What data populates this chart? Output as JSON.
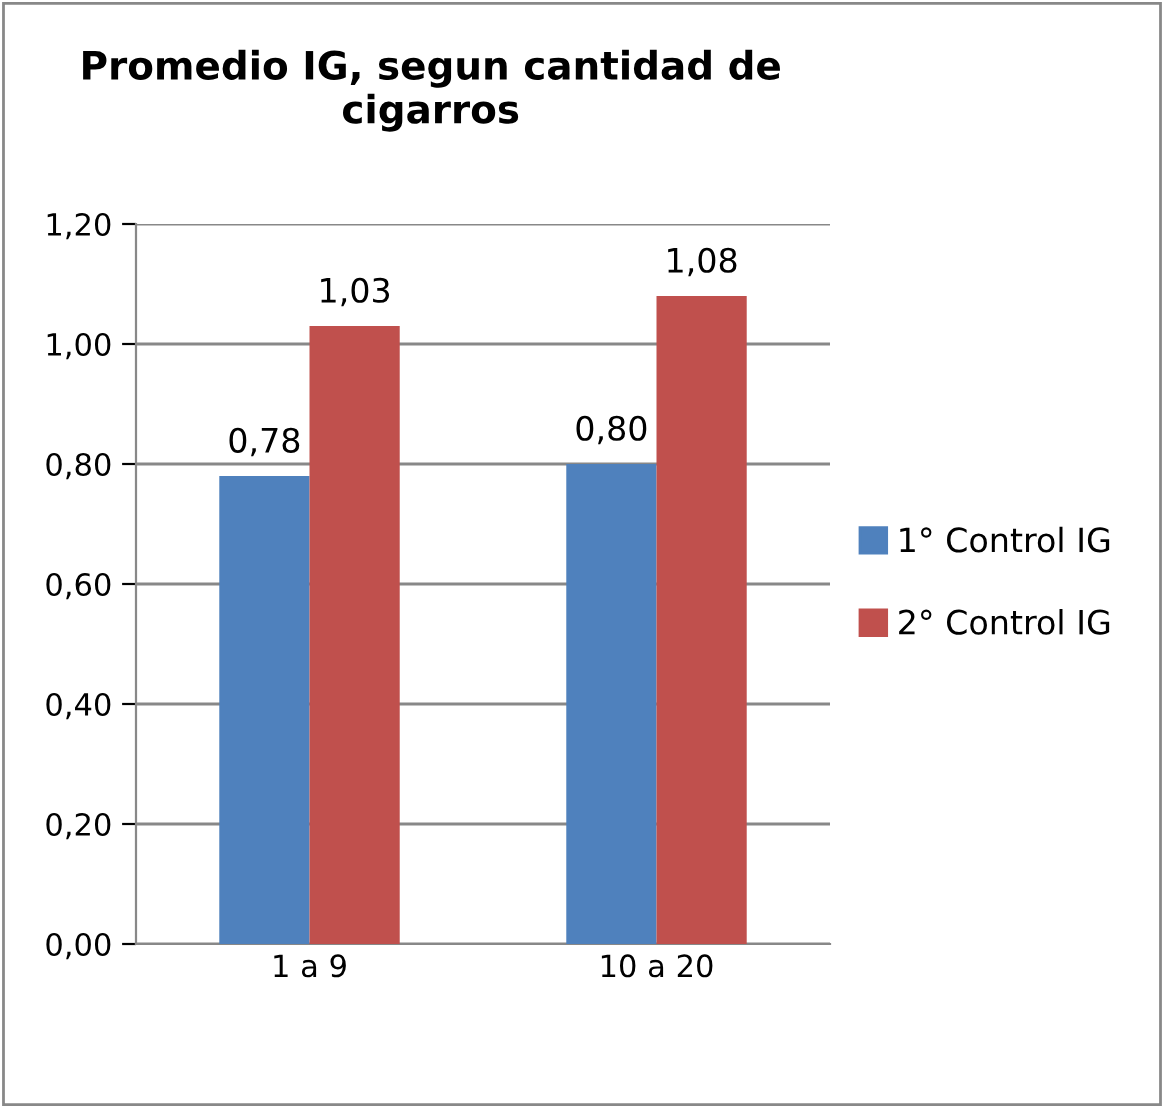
{
  "chart_data": {
    "type": "bar",
    "title": "Promedio IG, segun cantidad de cigarros",
    "categories": [
      "1 a 9",
      "10 a 20"
    ],
    "series": [
      {
        "name": "1° Control IG",
        "color": "#4f81bd",
        "values": [
          0.78,
          0.8
        ],
        "value_labels": [
          "0,78",
          "0,80"
        ]
      },
      {
        "name": "2° Control IG",
        "color": "#c0504d",
        "values": [
          1.03,
          1.08
        ],
        "value_labels": [
          "1,03",
          "1,08"
        ]
      }
    ],
    "ylim": [
      0,
      1.2
    ],
    "yticks": [
      {
        "value": 0,
        "label": "0,00"
      },
      {
        "value": 0.2,
        "label": "0,20"
      },
      {
        "value": 0.4,
        "label": "0,40"
      },
      {
        "value": 0.6,
        "label": "0,60"
      },
      {
        "value": 0.8,
        "label": "0,80"
      },
      {
        "value": 1.0,
        "label": "1,00"
      },
      {
        "value": 1.2,
        "label": "1,20"
      }
    ],
    "grid": "y",
    "legend": "right"
  }
}
